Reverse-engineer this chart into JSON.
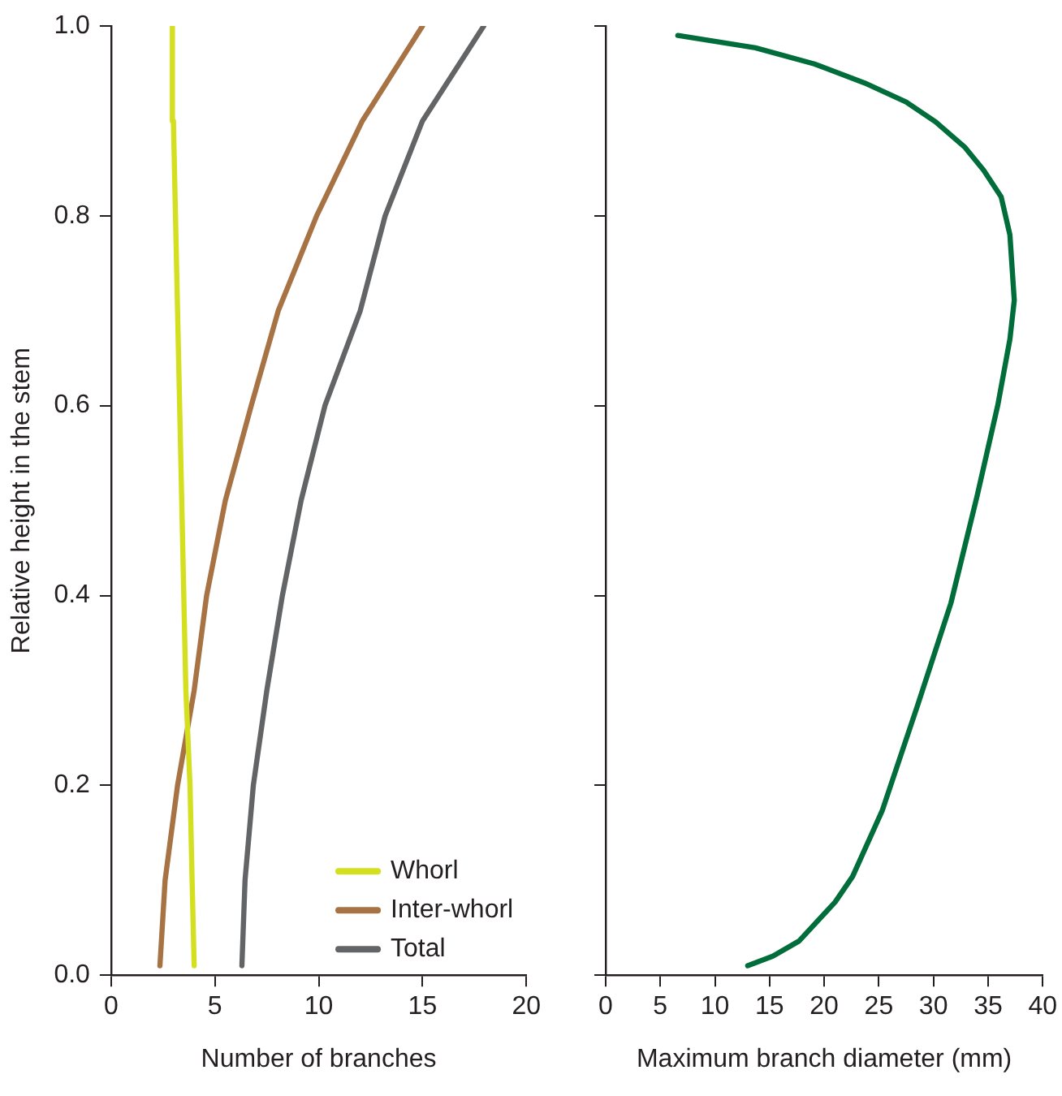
{
  "chart_data": [
    {
      "type": "line",
      "xlabel": "Number of branches",
      "ylabel": "Relative height in the stem",
      "xlim": [
        0,
        20
      ],
      "xticks": [
        0,
        5,
        10,
        15,
        20
      ],
      "ylim": [
        0,
        1
      ],
      "yticks": [
        {
          "value": 0,
          "label": "0.0"
        },
        {
          "value": 0.2,
          "label": "0.2"
        },
        {
          "value": 0.4,
          "label": "0.4"
        },
        {
          "value": 0.6,
          "label": "0.6"
        },
        {
          "value": 0.8,
          "label": "0.8"
        },
        {
          "value": 1,
          "label": "1.0"
        }
      ],
      "legend": "bottom right",
      "marker": "none",
      "line_style": "solid",
      "series": [
        {
          "name": "Whorl",
          "color": "#d4df1f",
          "x": [
            4.0,
            3.9,
            3.8,
            3.6,
            3.5,
            3.4,
            3.3,
            3.2,
            3.1,
            3.0,
            2.95
          ],
          "values": [
            0.01,
            0.1,
            0.2,
            0.3,
            0.4,
            0.5,
            0.6,
            0.7,
            0.8,
            0.9,
            1.0
          ]
        },
        {
          "name": "Inter-whorl",
          "color": "#a87344",
          "x": [
            2.35,
            2.6,
            3.2,
            4.0,
            4.6,
            5.5,
            6.75,
            8.05,
            9.9,
            12.1,
            15.0
          ],
          "values": [
            0.01,
            0.1,
            0.2,
            0.3,
            0.4,
            0.5,
            0.6,
            0.7,
            0.8,
            0.9,
            1.0
          ]
        },
        {
          "name": "Total",
          "color": "#636466",
          "x": [
            6.3,
            6.45,
            6.85,
            7.5,
            8.25,
            9.15,
            10.3,
            12.0,
            13.2,
            15.0,
            17.95
          ],
          "values": [
            0.01,
            0.1,
            0.2,
            0.3,
            0.4,
            0.5,
            0.6,
            0.7,
            0.8,
            0.9,
            1.0
          ]
        }
      ]
    },
    {
      "type": "line",
      "xlabel": "Maximum branch diameter (mm)",
      "xlim": [
        0,
        40
      ],
      "xticks": [
        0,
        5,
        10,
        15,
        20,
        25,
        30,
        35,
        40
      ],
      "ylim": [
        0,
        1
      ],
      "yticks": [
        0,
        0.2,
        0.4,
        0.6,
        0.8,
        1
      ],
      "tick_labels": "x",
      "marker": "none",
      "line_style": "solid",
      "series": [
        {
          "color": "#006d3a",
          "x": [
            13.0,
            15.3,
            17.7,
            21.0,
            22.6,
            25.3,
            28.6,
            31.6,
            34.0,
            35.9,
            37.0,
            37.4,
            37.0,
            36.2,
            34.6,
            32.9,
            30.2,
            27.5,
            23.7,
            19.1,
            13.7,
            6.6
          ],
          "values": [
            0.01,
            0.02,
            0.036,
            0.077,
            0.104,
            0.173,
            0.286,
            0.392,
            0.505,
            0.601,
            0.67,
            0.711,
            0.78,
            0.82,
            0.848,
            0.872,
            0.899,
            0.92,
            0.94,
            0.96,
            0.977,
            0.99
          ]
        }
      ]
    }
  ]
}
